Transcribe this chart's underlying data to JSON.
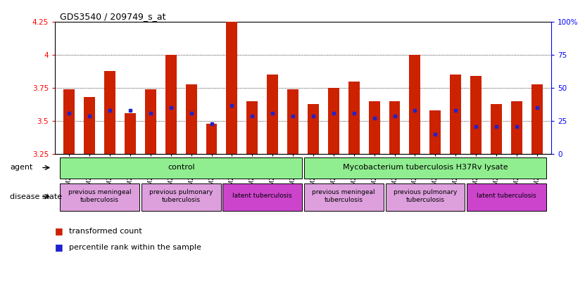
{
  "title": "GDS3540 / 209749_s_at",
  "samples": [
    "GSM280335",
    "GSM280341",
    "GSM280351",
    "GSM280353",
    "GSM280333",
    "GSM280339",
    "GSM280347",
    "GSM280349",
    "GSM280331",
    "GSM280337",
    "GSM280343",
    "GSM280345",
    "GSM280336",
    "GSM280342",
    "GSM280352",
    "GSM280354",
    "GSM280334",
    "GSM280340",
    "GSM280348",
    "GSM280350",
    "GSM280332",
    "GSM280338",
    "GSM280344",
    "GSM280346"
  ],
  "bar_values": [
    3.74,
    3.68,
    3.88,
    3.56,
    3.74,
    4.0,
    3.78,
    3.48,
    4.25,
    3.65,
    3.85,
    3.74,
    3.63,
    3.75,
    3.8,
    3.65,
    3.65,
    4.0,
    3.58,
    3.85,
    3.84,
    3.63,
    3.65,
    3.78
  ],
  "dot_values": [
    3.56,
    3.54,
    3.58,
    3.58,
    3.56,
    3.6,
    3.56,
    3.48,
    3.62,
    3.54,
    3.56,
    3.54,
    3.54,
    3.56,
    3.56,
    3.52,
    3.54,
    3.58,
    3.4,
    3.58,
    3.46,
    3.46,
    3.46,
    3.6
  ],
  "ymin": 3.25,
  "ymax": 4.25,
  "yticks": [
    3.25,
    3.5,
    3.75,
    4.0,
    4.25
  ],
  "ytick_labels": [
    "3.25",
    "3.5",
    "3.75",
    "4",
    "4.25"
  ],
  "right_yticks": [
    0,
    25,
    50,
    75,
    100
  ],
  "right_ytick_labels": [
    "0",
    "25",
    "50",
    "75",
    "100%"
  ],
  "grid_values": [
    3.5,
    3.75,
    4.0
  ],
  "bar_color": "#CC2200",
  "dot_color": "#2222CC",
  "agent_groups": [
    {
      "label": "control",
      "start": 0,
      "end": 11,
      "color": "#90EE90"
    },
    {
      "label": "Mycobacterium tuberculosis H37Rv lysate",
      "start": 12,
      "end": 23,
      "color": "#90EE90"
    }
  ],
  "disease_groups": [
    {
      "label": "previous meningeal\ntuberculosis",
      "start": 0,
      "end": 3,
      "latent": false
    },
    {
      "label": "previous pulmonary\ntuberculosis",
      "start": 4,
      "end": 7,
      "latent": false
    },
    {
      "label": "latent tuberculosis",
      "start": 8,
      "end": 11,
      "latent": true
    },
    {
      "label": "previous meningeal\ntuberculosis",
      "start": 12,
      "end": 15,
      "latent": false
    },
    {
      "label": "previous pulmonary\ntuberculosis",
      "start": 16,
      "end": 19,
      "latent": false
    },
    {
      "label": "latent tuberculosis",
      "start": 20,
      "end": 23,
      "latent": true
    }
  ],
  "agent_label": "agent",
  "disease_label": "disease state",
  "legend_bar": "transformed count",
  "legend_dot": "percentile rank within the sample",
  "latent_color": "#CC44CC",
  "nonlatent_color": "#DDA0DD",
  "agent_color": "#90EE90"
}
